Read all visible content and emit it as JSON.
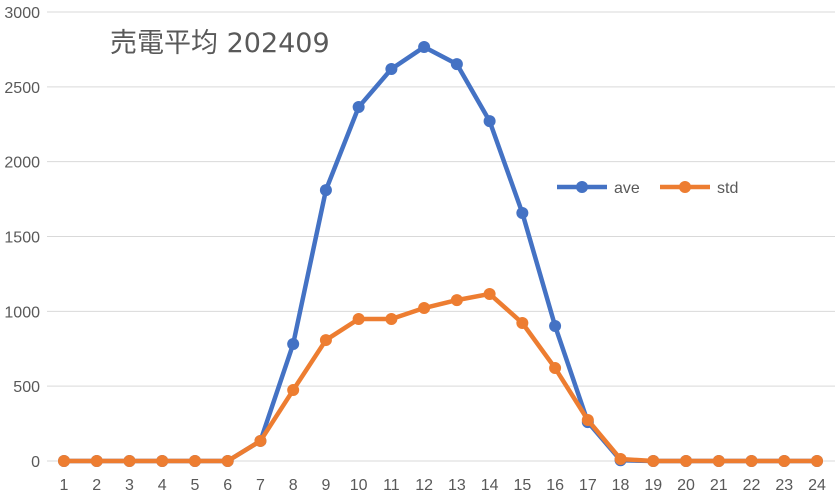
{
  "chart_data": {
    "type": "line",
    "title": "売電平均 202409",
    "xlabel": "",
    "ylabel": "",
    "x": [
      "1",
      "2",
      "3",
      "4",
      "5",
      "6",
      "7",
      "8",
      "9",
      "10",
      "11",
      "12",
      "13",
      "14",
      "15",
      "16",
      "17",
      "18",
      "19",
      "20",
      "21",
      "22",
      "23",
      "24"
    ],
    "ylim": [
      0,
      3000
    ],
    "yticks": [
      0,
      500,
      1000,
      1500,
      2000,
      2500,
      3000
    ],
    "grid": true,
    "legend_position": "right",
    "series": [
      {
        "name": "ave",
        "color": "#4472C4",
        "values": [
          0,
          0,
          0,
          0,
          0,
          0,
          134,
          782,
          1810,
          2365,
          2619,
          2766,
          2652,
          2271,
          1657,
          902,
          260,
          5,
          0,
          0,
          0,
          0,
          0,
          0
        ]
      },
      {
        "name": "std",
        "color": "#ED7D31",
        "values": [
          0,
          0,
          0,
          0,
          0,
          0,
          134,
          474,
          808,
          949,
          949,
          1022,
          1075,
          1116,
          922,
          621,
          274,
          13,
          0,
          0,
          0,
          0,
          0,
          0
        ]
      }
    ]
  }
}
